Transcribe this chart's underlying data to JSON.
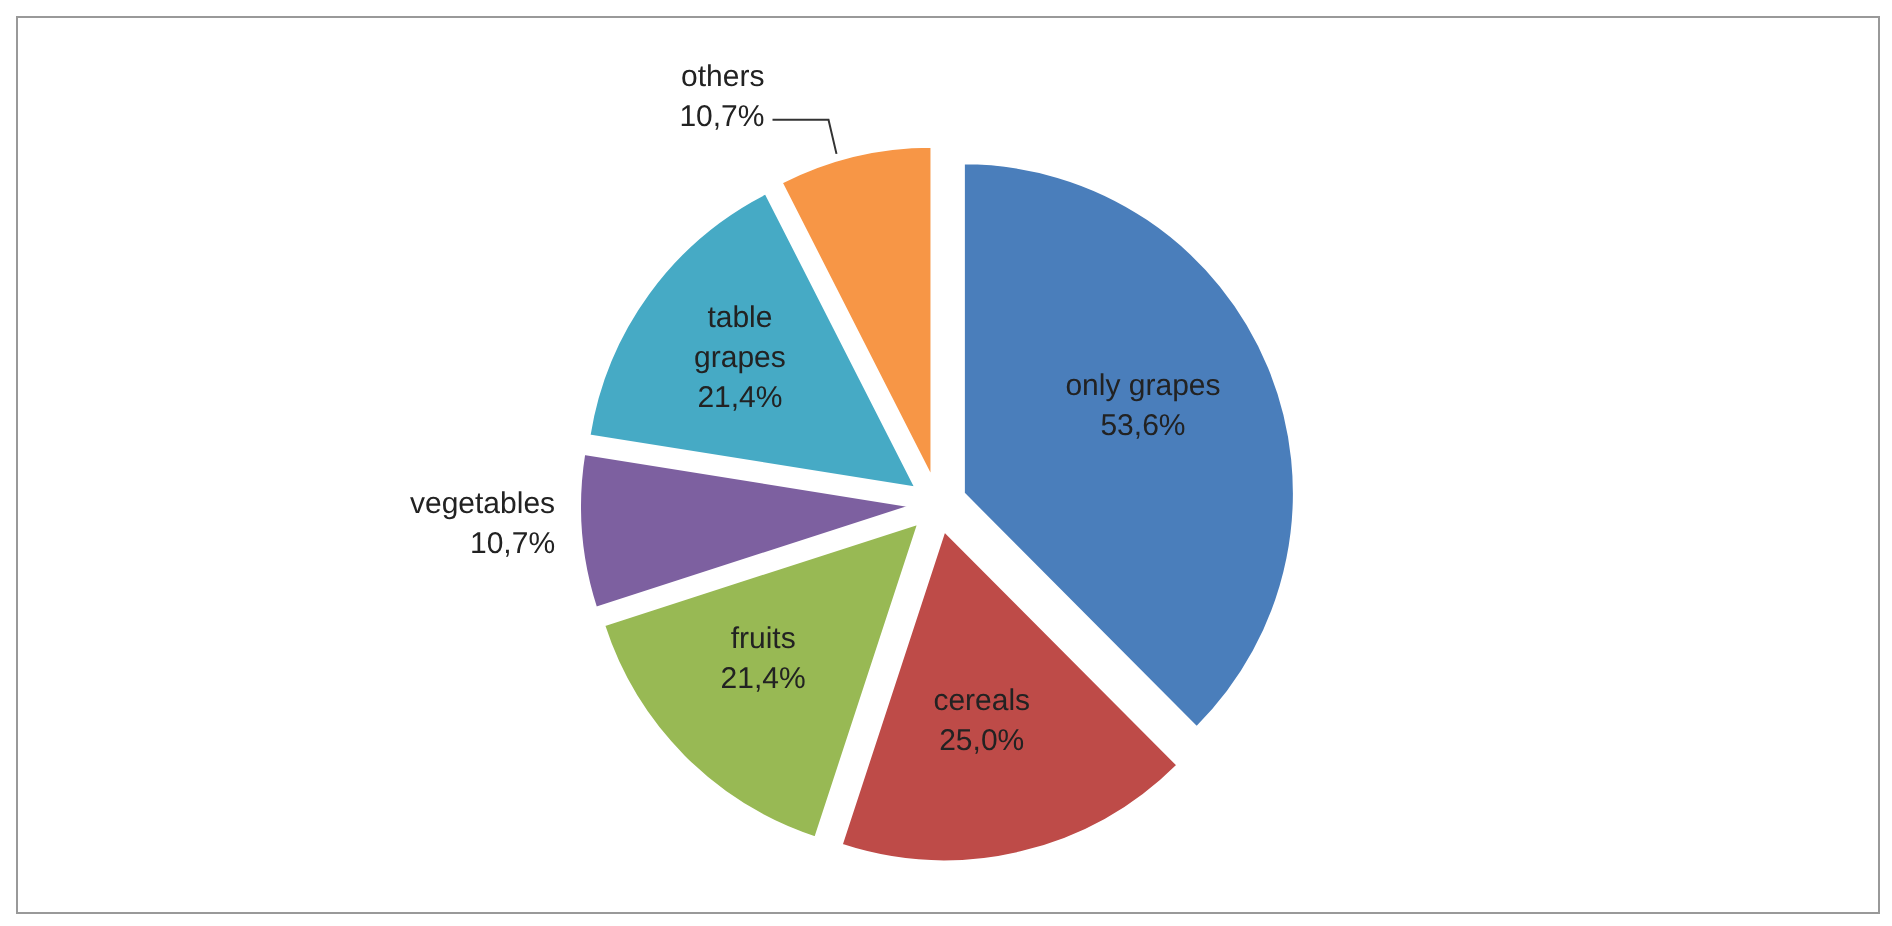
{
  "chart_data": {
    "type": "pie",
    "categories": [
      "only grapes",
      "cereals",
      "fruits",
      "vegetables",
      "table grapes",
      "others"
    ],
    "values": [
      53.6,
      25.0,
      21.4,
      10.7,
      21.4,
      10.7
    ],
    "value_labels": [
      "53,6%",
      "25,0%",
      "21,4%",
      "10,7%",
      "21,4%",
      "10,7%"
    ],
    "colors": [
      "#4a7ebb",
      "#be4b48",
      "#98b954",
      "#7d60a0",
      "#46aac5",
      "#f79646"
    ],
    "legend": false
  }
}
